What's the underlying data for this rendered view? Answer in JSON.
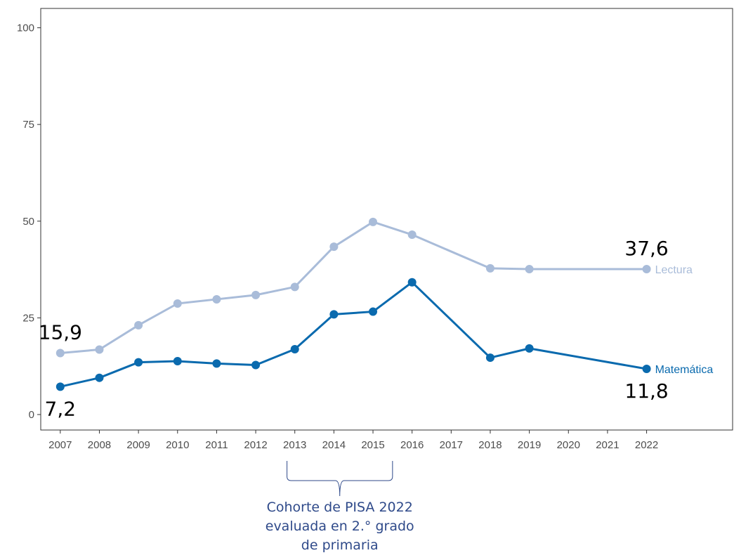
{
  "chart_data": {
    "type": "line",
    "title": "",
    "xlabel": "",
    "ylabel": "",
    "x": [
      2007,
      2008,
      2009,
      2010,
      2011,
      2012,
      2013,
      2014,
      2015,
      2016,
      2018,
      2019,
      2022
    ],
    "x_ticks": [
      "2007",
      "2008",
      "2009",
      "2010",
      "2011",
      "2012",
      "2013",
      "2014",
      "2015",
      "2016",
      "2017",
      "2018",
      "2019",
      "2020",
      "2021",
      "2022"
    ],
    "y_ticks": [
      "0",
      "25",
      "50",
      "75",
      "100"
    ],
    "xlim": [
      2006.5,
      2024.2
    ],
    "ylim": [
      -4,
      105
    ],
    "grid": false,
    "series": [
      {
        "name": "Lectura",
        "color": "#a9bcd9",
        "values": [
          15.9,
          16.8,
          23.1,
          28.7,
          29.8,
          30.9,
          33.0,
          43.4,
          49.8,
          46.5,
          37.8,
          37.6,
          37.6
        ]
      },
      {
        "name": "Matemática",
        "color": "#0a6aae",
        "values": [
          7.2,
          9.5,
          13.5,
          13.8,
          13.2,
          12.8,
          16.9,
          25.9,
          26.6,
          34.2,
          14.7,
          17.1,
          11.8
        ]
      }
    ],
    "data_labels": [
      {
        "text": "15,9",
        "x": 2007,
        "y": 15.9,
        "position": "above"
      },
      {
        "text": "7,2",
        "x": 2007,
        "y": 7.2,
        "position": "below"
      },
      {
        "text": "37,6",
        "x": 2022,
        "y": 37.6,
        "position": "above"
      },
      {
        "text": "11,8",
        "x": 2022,
        "y": 11.8,
        "position": "below"
      }
    ],
    "annotation": {
      "lines": [
        "Cohorte de PISA 2022",
        "evaluada en 2.° grado",
        "de primaria"
      ],
      "x_range": [
        2012.8,
        2015.5
      ],
      "color": "#2f4a8a"
    }
  }
}
